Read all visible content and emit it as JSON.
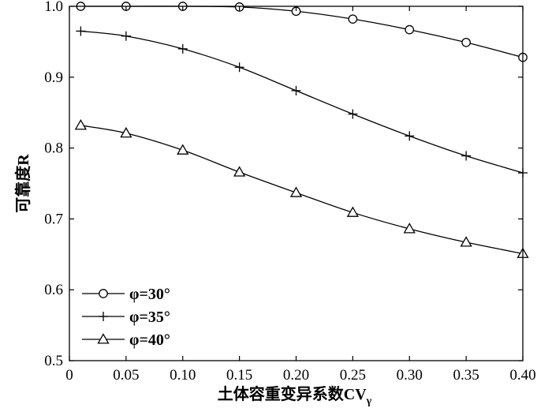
{
  "chart_data": {
    "type": "line",
    "xlabel": "土体容重变异系数CV",
    "xlabel_subscript": "γ",
    "ylabel": "可靠度R",
    "xlim": [
      0,
      0.4
    ],
    "ylim": [
      0.5,
      1.0
    ],
    "x_ticks": [
      "0",
      "0.05",
      "0.10",
      "0.15",
      "0.20",
      "0.25",
      "0.30",
      "0.35",
      "0.40"
    ],
    "y_ticks": [
      "0.5",
      "0.6",
      "0.7",
      "0.8",
      "0.9",
      "1.0"
    ],
    "x": [
      0.01,
      0.05,
      0.1,
      0.15,
      0.2,
      0.25,
      0.3,
      0.35,
      0.4
    ],
    "grid": false,
    "legend_position": "bottom-left",
    "series": [
      {
        "name": "φ=30°",
        "marker": "circle",
        "values": [
          1.0,
          1.0,
          1.0,
          0.999,
          0.993,
          0.982,
          0.967,
          0.949,
          0.928
        ]
      },
      {
        "name": "φ=35°",
        "marker": "plus",
        "values": [
          0.965,
          0.958,
          0.94,
          0.914,
          0.881,
          0.848,
          0.817,
          0.789,
          0.765
        ]
      },
      {
        "name": "φ=40°",
        "marker": "triangle",
        "values": [
          0.832,
          0.821,
          0.797,
          0.766,
          0.737,
          0.709,
          0.686,
          0.667,
          0.651
        ]
      }
    ]
  }
}
